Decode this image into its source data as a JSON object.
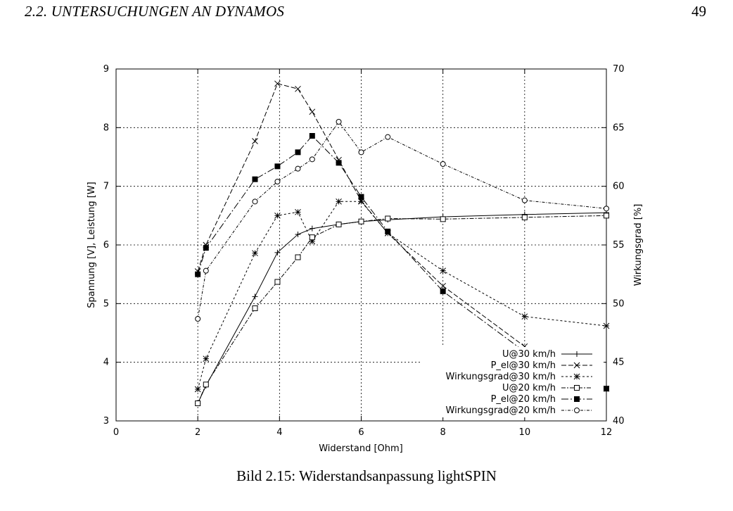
{
  "header": {
    "running_head": "2.2.  UNTERSUCHUNGEN AN DYNAMOS",
    "page_number": "49"
  },
  "caption": "Bild 2.15: Widerstandsanpassung lightSPIN",
  "chart_data": {
    "type": "line",
    "xlabel": "Widerstand [Ohm]",
    "ylabel": "Spannung [V], Leistung [W]",
    "y2label": "Wirkungsgrad [%]",
    "xlim": [
      0,
      12
    ],
    "ylim": [
      3,
      9
    ],
    "y2lim": [
      40,
      70
    ],
    "xticks": [
      0,
      2,
      4,
      6,
      8,
      10,
      12
    ],
    "yticks": [
      3,
      4,
      5,
      6,
      7,
      8,
      9
    ],
    "y2ticks": [
      40,
      45,
      50,
      55,
      60,
      65,
      70
    ],
    "grid": true,
    "legend_position": "bottom-right",
    "series": [
      {
        "name": "U@30 km/h",
        "axis": "left",
        "marker": "plus",
        "dash": "",
        "x": [
          2,
          2.2,
          3.4,
          3.95,
          4.45,
          4.8,
          5.45,
          6,
          6.65,
          8,
          10,
          12
        ],
        "y": [
          3.3,
          3.6,
          5.12,
          5.87,
          6.18,
          6.28,
          6.35,
          6.4,
          6.43,
          6.48,
          6.52,
          6.55
        ]
      },
      {
        "name": "P_el@30 km/h",
        "axis": "left",
        "marker": "cross",
        "dash": "7,3",
        "x": [
          2,
          2.2,
          3.4,
          3.95,
          4.45,
          4.8,
          5.45,
          6,
          6.65,
          8,
          10,
          12
        ],
        "y": [
          5.55,
          6.0,
          7.77,
          8.75,
          8.66,
          8.27,
          7.45,
          6.75,
          6.2,
          5.3,
          4.27,
          3.55
        ]
      },
      {
        "name": "Wirkungsgrad@30 km/h",
        "axis": "right",
        "marker": "star",
        "dash": "3,3",
        "x": [
          2,
          2.2,
          3.4,
          3.95,
          4.45,
          4.8,
          5.45,
          6,
          6.65,
          8,
          10,
          12
        ],
        "y": [
          42.7,
          45.3,
          54.3,
          57.5,
          57.8,
          55.3,
          58.7,
          58.7,
          56.0,
          52.8,
          48.9,
          48.1
        ]
      },
      {
        "name": "U@20 km/h",
        "axis": "left",
        "marker": "square-open",
        "dash": "6,2,2,2",
        "x": [
          2,
          2.2,
          3.4,
          3.95,
          4.45,
          4.8,
          5.45,
          6,
          6.65,
          8,
          10,
          12
        ],
        "y": [
          3.3,
          3.62,
          4.92,
          5.37,
          5.79,
          6.13,
          6.35,
          6.4,
          6.45,
          6.44,
          6.47,
          6.5
        ]
      },
      {
        "name": "P_el@20 km/h",
        "axis": "left",
        "marker": "square-filled",
        "dash": "10,3,2,3",
        "x": [
          2,
          2.2,
          3.4,
          3.95,
          4.45,
          4.8,
          5.45,
          6,
          6.65,
          8,
          10,
          12
        ],
        "y": [
          5.5,
          5.95,
          7.12,
          7.34,
          7.58,
          7.86,
          7.4,
          6.82,
          6.23,
          5.21,
          4.18,
          3.55
        ]
      },
      {
        "name": "Wirkungsgrad@20 km/h",
        "axis": "right",
        "marker": "circle-open",
        "dash": "4,2,1,2",
        "x": [
          2,
          2.2,
          3.4,
          3.95,
          4.45,
          4.8,
          5.45,
          6,
          6.65,
          8,
          10,
          12
        ],
        "y": [
          48.7,
          52.8,
          58.7,
          60.4,
          61.5,
          62.3,
          65.5,
          62.9,
          64.2,
          61.9,
          58.8,
          58.1
        ]
      }
    ]
  }
}
